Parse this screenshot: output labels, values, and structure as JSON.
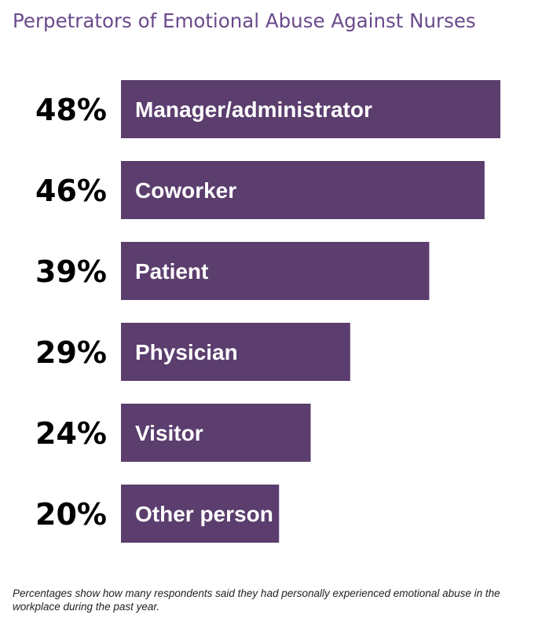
{
  "chart_data": {
    "type": "bar",
    "orientation": "horizontal",
    "title": "Perpetrators of Emotional Abuse Against Nurses",
    "categories": [
      "Manager/administrator",
      "Coworker",
      "Patient",
      "Physician",
      "Visitor",
      "Other person"
    ],
    "values": [
      48,
      46,
      39,
      29,
      24,
      20
    ],
    "value_labels": [
      "48%",
      "46%",
      "39%",
      "29%",
      "24%",
      "20%"
    ],
    "unit": "%",
    "xlim": [
      0,
      48
    ],
    "grid": false,
    "legend": "none",
    "bar_color": "#5b3d6e",
    "footnote": "Percentages show how many respondents said they had personally experienced emotional abuse in the workplace during the past year."
  },
  "colors": {
    "title": "#6a4a8c",
    "bar": "#5b3d6e",
    "bar_text": "#ffffff",
    "value_text": "#000000"
  }
}
